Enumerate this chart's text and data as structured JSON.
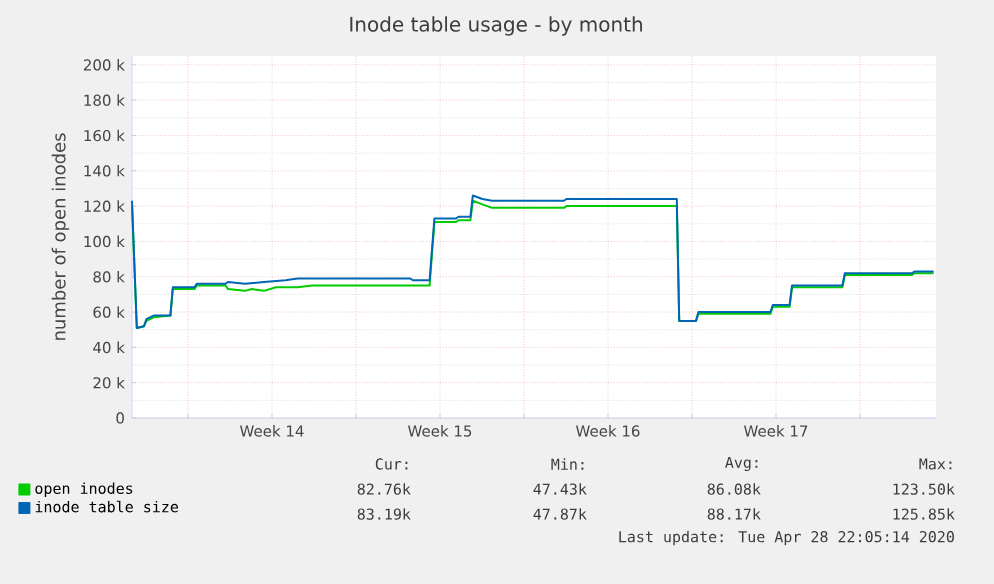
{
  "chart_data": {
    "type": "line",
    "title": "Inode table usage - by month",
    "ylabel": "number of open inodes",
    "xlim": [
      "2020-03-26T16:00",
      "2020-04-29T04:00"
    ],
    "xticks": [
      {
        "value": "2020-03-29",
        "label": null
      },
      {
        "value": "2020-04-01T12:00",
        "label": "Week 14"
      },
      {
        "value": "2020-04-05",
        "label": null
      },
      {
        "value": "2020-04-08T12:00",
        "label": "Week 15"
      },
      {
        "value": "2020-04-12",
        "label": null
      },
      {
        "value": "2020-04-15T12:00",
        "label": "Week 16"
      },
      {
        "value": "2020-04-19",
        "label": null
      },
      {
        "value": "2020-04-22T12:00",
        "label": "Week 17"
      },
      {
        "value": "2020-04-26",
        "label": null
      }
    ],
    "ylim": [
      0,
      205
    ],
    "yticks": [
      {
        "value": 0,
        "label": "0"
      },
      {
        "value": 20,
        "label": "20 k"
      },
      {
        "value": 40,
        "label": "40 k"
      },
      {
        "value": 60,
        "label": "60 k"
      },
      {
        "value": 80,
        "label": "80 k"
      },
      {
        "value": 100,
        "label": "100 k"
      },
      {
        "value": 120,
        "label": "120 k"
      },
      {
        "value": 140,
        "label": "140 k"
      },
      {
        "value": 160,
        "label": "160 k"
      },
      {
        "value": 180,
        "label": "180 k"
      },
      {
        "value": 200,
        "label": "200 k"
      }
    ],
    "grid": true,
    "legend": "bottom left",
    "marker": "none",
    "line_style": "solid",
    "series": [
      {
        "name": "open inodes",
        "color": "#00cc00",
        "x": [
          "2020-03-26T16:00",
          "2020-03-26T20:48",
          "2020-03-27T04:00",
          "2020-03-27T06:24",
          "2020-03-27T13:36",
          "2020-03-28T06:24",
          "2020-03-28T08:48",
          "2020-03-29T06:24",
          "2020-03-29T08:48",
          "2020-03-30T13:36",
          "2020-03-30T16:00",
          "2020-03-31T08:48",
          "2020-03-31T16:00",
          "2020-04-01T04:00",
          "2020-04-01T16:00",
          "2020-04-02T13:36",
          "2020-04-03T04:00",
          "2020-04-07T06:24",
          "2020-04-08T01:36",
          "2020-04-08T06:24",
          "2020-04-09T04:00",
          "2020-04-09T06:24",
          "2020-04-09T18:24",
          "2020-04-09T20:48",
          "2020-04-10T06:24",
          "2020-04-10T16:00",
          "2020-04-13T16:00",
          "2020-04-13T18:24",
          "2020-04-18T08:48",
          "2020-04-18T11:12",
          "2020-04-19T04:00",
          "2020-04-19T06:24",
          "2020-04-22T06:24",
          "2020-04-22T08:48",
          "2020-04-23T01:36",
          "2020-04-23T04:00",
          "2020-04-25T06:24",
          "2020-04-25T08:48",
          "2020-04-28T04:00",
          "2020-04-28T06:24",
          "2020-04-29T01:36"
        ],
        "values": [
          120,
          51,
          52,
          55,
          57,
          58,
          73,
          73,
          75,
          75,
          73,
          72,
          73,
          72,
          74,
          74,
          75,
          75,
          75,
          111,
          111,
          112,
          112,
          123,
          121,
          119,
          119,
          120,
          120,
          55,
          55,
          59,
          59,
          63,
          63,
          74,
          74,
          81,
          81,
          82,
          82
        ]
      },
      {
        "name": "inode table size",
        "color": "#0066b3",
        "x": [
          "2020-03-26T16:00",
          "2020-03-26T20:48",
          "2020-03-27T04:00",
          "2020-03-27T06:24",
          "2020-03-27T13:36",
          "2020-03-28T06:24",
          "2020-03-28T08:48",
          "2020-03-29T06:24",
          "2020-03-29T08:48",
          "2020-03-30T13:36",
          "2020-03-30T16:00",
          "2020-03-31T08:48",
          "2020-04-01T04:00",
          "2020-04-02T01:36",
          "2020-04-02T13:36",
          "2020-04-07T06:24",
          "2020-04-07T08:48",
          "2020-04-08T01:36",
          "2020-04-08T06:24",
          "2020-04-09T04:00",
          "2020-04-09T06:24",
          "2020-04-09T18:24",
          "2020-04-09T20:48",
          "2020-04-10T06:24",
          "2020-04-10T16:00",
          "2020-04-13T16:00",
          "2020-04-13T18:24",
          "2020-04-18T08:48",
          "2020-04-18T11:12",
          "2020-04-19T04:00",
          "2020-04-19T06:24",
          "2020-04-22T06:24",
          "2020-04-22T08:48",
          "2020-04-23T01:36",
          "2020-04-23T04:00",
          "2020-04-25T06:24",
          "2020-04-25T08:48",
          "2020-04-28T04:00",
          "2020-04-28T06:24",
          "2020-04-29T01:36"
        ],
        "values": [
          123,
          51,
          52,
          56,
          58,
          58,
          74,
          74,
          76,
          76,
          77,
          76,
          77,
          78,
          79,
          79,
          78,
          78,
          113,
          113,
          114,
          114,
          126,
          124,
          123,
          123,
          124,
          124,
          55,
          55,
          60,
          60,
          64,
          64,
          75,
          75,
          82,
          82,
          83,
          83
        ]
      }
    ],
    "annotations": [
      "Cur:",
      "Min:",
      "Avg:",
      "Max:",
      "82.76k",
      "47.43k",
      "86.08k",
      "123.50k",
      "83.19k",
      "47.87k",
      "88.17k",
      "125.85k",
      "Last update: Tue Apr 28 22:05:14 2020"
    ]
  }
}
